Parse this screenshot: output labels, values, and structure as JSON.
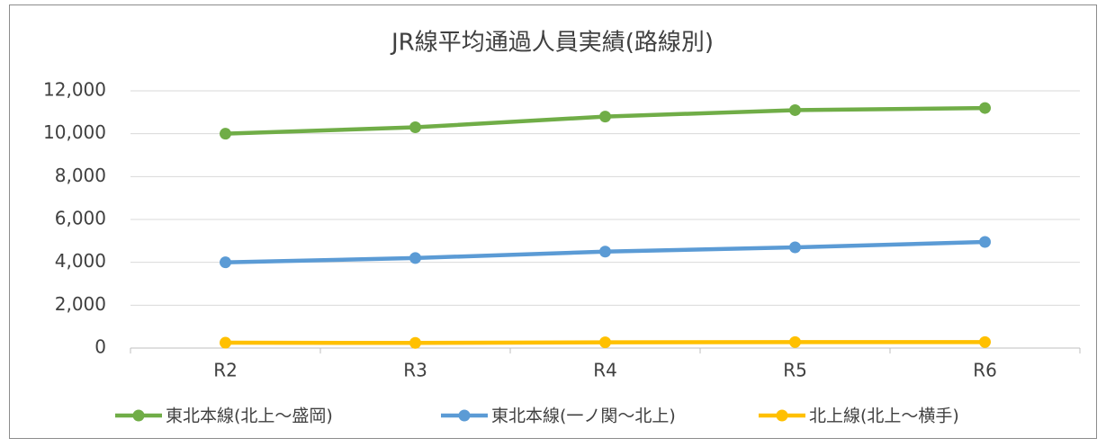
{
  "chart_data": {
    "type": "line",
    "title": "JR線平均通過人員実績(路線別)",
    "categories": [
      "R2",
      "R3",
      "R4",
      "R5",
      "R6"
    ],
    "series": [
      {
        "name": "東北本線(北上～盛岡)",
        "color": "#70ad47",
        "values": [
          10000,
          10300,
          10800,
          11100,
          11200
        ]
      },
      {
        "name": "東北本線(一ノ関～北上)",
        "color": "#5b9bd5",
        "values": [
          4000,
          4200,
          4500,
          4700,
          4950
        ]
      },
      {
        "name": "北上線(北上～横手)",
        "color": "#ffc000",
        "values": [
          250,
          240,
          270,
          280,
          280
        ]
      }
    ],
    "ylim": [
      0,
      12000
    ],
    "yticks": [
      0,
      {
        "value": 2000,
        "label": "2,000"
      },
      {
        "value": 4000,
        "label": "4,000"
      },
      {
        "value": 6000,
        "label": "6,000"
      },
      {
        "value": 8000,
        "label": "8,000"
      },
      {
        "value": 10000,
        "label": "10,000"
      },
      {
        "value": 12000,
        "label": "12,000"
      }
    ],
    "grid": true,
    "legend": "bottom"
  }
}
